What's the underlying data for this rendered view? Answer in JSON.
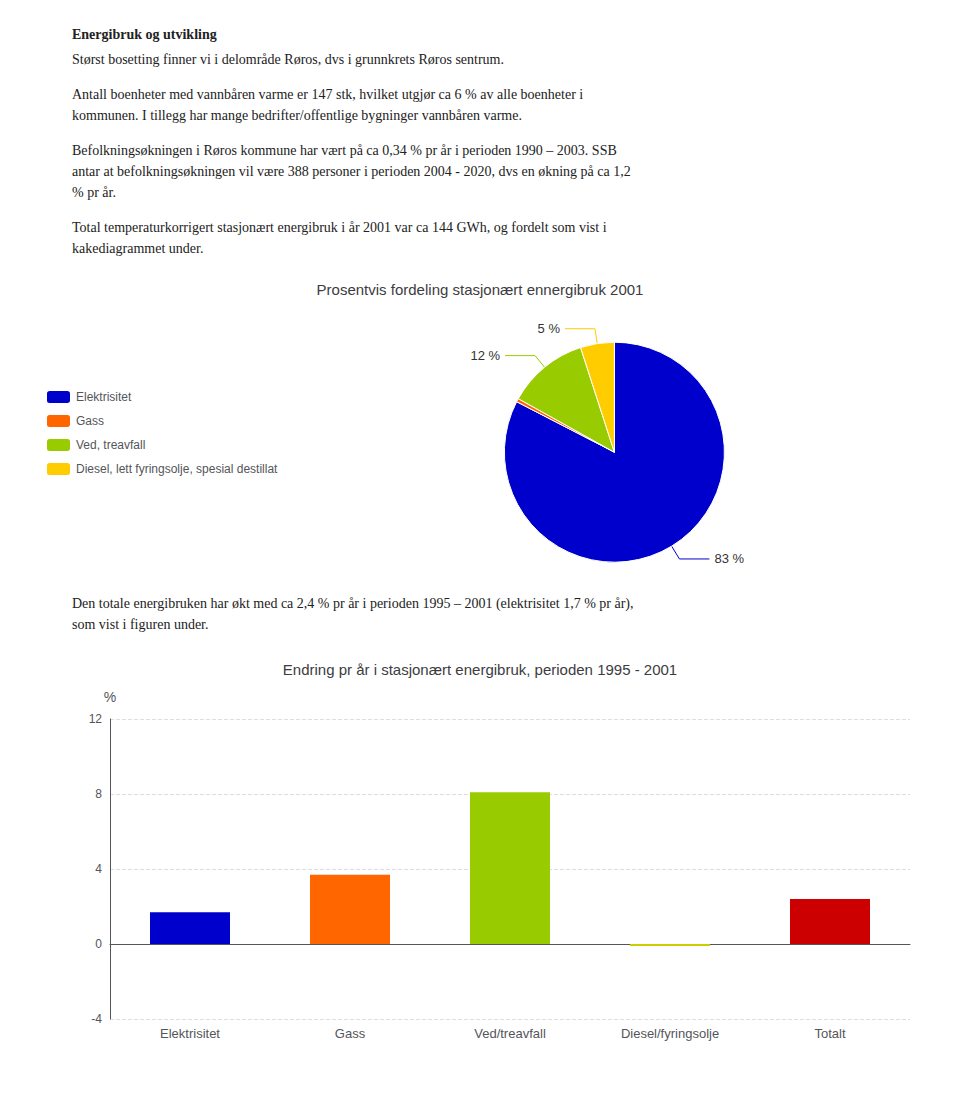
{
  "chart_data": [
    {
      "type": "pie",
      "title": "Prosentvis fordeling stasjonært ennergibruk 2001",
      "annotations": [
        "Energibruk og utvikling",
        "Størst bosetting finner vi i delområde Røros, dvs i grunnkrets Røros sentrum.",
        "Antall boenheter med vannbåren varme er 147 stk, hvilket utgjør ca 6 % av alle boenheter i\nkommunen. I tillegg har mange bedrifter/offentlige bygninger vannbåren varme.",
        "Befolkningsøkningen i Røros kommune har vært på ca 0,34 % pr år i perioden 1990 – 2003. SSB\nantar at befolkningsøkningen vil være 388 personer i perioden 2004 - 2020, dvs en økning på ca 1,2\n% pr år.",
        "Total temperaturkorrigert stasjonært energibruk i år 2001 var ca 144 GWh, og fordelt som vist i\nkakediagrammet under."
      ],
      "categories": [
        "Elektrisitet",
        "Gass",
        "Ved, treavfall",
        "Diesel, lett fyringsolje, spesial destillat"
      ],
      "values": [
        83,
        0.5,
        12,
        5
      ],
      "value_labels": [
        "83 %",
        null,
        "12 %",
        "5 %"
      ],
      "data_labels": true,
      "colors": [
        "#0000CC",
        "#FF6600",
        "#99CC00",
        "#FFCC00"
      ],
      "legend": "left"
    },
    {
      "type": "bar",
      "title": "Endring pr år i stasjonært energibruk, perioden 1995 - 2001",
      "annotations": [
        "Den totale energibruken har økt med ca 2,4 % pr år i perioden 1995 – 2001 (elektrisitet 1,7 % pr år),\nsom vist i figuren under."
      ],
      "categories": [
        "Elektrisitet",
        "Gass",
        "Ved/treavfall",
        "Diesel/fyringsolje",
        "Totalt"
      ],
      "values": [
        1.7,
        3.7,
        8.1,
        -0.1,
        2.4
      ],
      "colors": [
        "#0000CC",
        "#FF6600",
        "#99CC00",
        "#CCCC00",
        "#CC0000"
      ],
      "ylabel": "%",
      "ylim": [
        -4,
        12
      ],
      "yticks": [
        -4,
        0,
        4,
        8,
        12
      ],
      "grid": true
    }
  ]
}
